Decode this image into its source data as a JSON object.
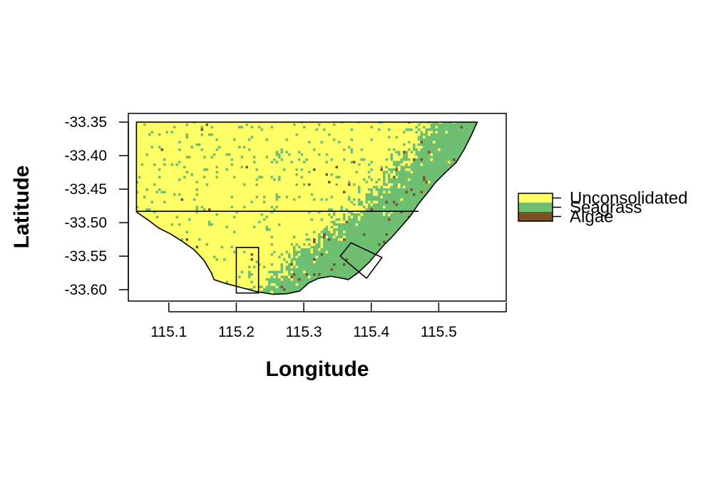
{
  "chart_data": {
    "type": "raster-map",
    "xlabel": "Longitude",
    "ylabel": "Latitude",
    "xlim": [
      115.04,
      115.6
    ],
    "ylim": [
      -33.617,
      -33.337
    ],
    "x_ticks": [
      115.1,
      115.2,
      115.3,
      115.4,
      115.5,
      115.6
    ],
    "x_tick_labels": [
      "115.1",
      "115.2",
      "115.3",
      "115.4",
      "115.5",
      ""
    ],
    "y_ticks": [
      -33.35,
      -33.4,
      -33.45,
      -33.5,
      -33.55,
      -33.6
    ],
    "y_tick_labels": [
      "-33.35",
      "-33.40",
      "-33.45",
      "-33.50",
      "-33.55",
      "-33.60"
    ],
    "classes": [
      {
        "name": "Unconsolidated",
        "color": "#FFFF66"
      },
      {
        "name": "Seagrass",
        "color": "#6FBF73"
      },
      {
        "name": "Algae",
        "color": "#7A5226"
      }
    ],
    "study_area_outline": [
      [
        115.052,
        -33.35
      ],
      [
        115.557,
        -33.35
      ],
      [
        115.548,
        -33.37
      ],
      [
        115.538,
        -33.39
      ],
      [
        115.526,
        -33.41
      ],
      [
        115.51,
        -33.425
      ],
      [
        115.495,
        -33.44
      ],
      [
        115.482,
        -33.457
      ],
      [
        115.47,
        -33.472
      ],
      [
        115.458,
        -33.49
      ],
      [
        115.445,
        -33.505
      ],
      [
        115.432,
        -33.52
      ],
      [
        115.42,
        -33.532
      ],
      [
        115.407,
        -33.547
      ],
      [
        115.396,
        -33.56
      ],
      [
        115.38,
        -33.575
      ],
      [
        115.366,
        -33.585
      ],
      [
        115.357,
        -33.583
      ],
      [
        115.34,
        -33.58
      ],
      [
        115.322,
        -33.583
      ],
      [
        115.307,
        -33.59
      ],
      [
        115.294,
        -33.602
      ],
      [
        115.275,
        -33.606
      ],
      [
        115.255,
        -33.607
      ],
      [
        115.23,
        -33.603
      ],
      [
        115.208,
        -33.597
      ],
      [
        115.185,
        -33.591
      ],
      [
        115.167,
        -33.585
      ],
      [
        115.163,
        -33.575
      ],
      [
        115.152,
        -33.556
      ],
      [
        115.137,
        -33.54
      ],
      [
        115.12,
        -33.528
      ],
      [
        115.103,
        -33.517
      ],
      [
        115.085,
        -33.508
      ],
      [
        115.072,
        -33.498
      ],
      [
        115.052,
        -33.484
      ]
    ],
    "coast_segment": [
      [
        115.052,
        -33.484
      ],
      [
        115.072,
        -33.498
      ],
      [
        115.085,
        -33.508
      ],
      [
        115.103,
        -33.517
      ],
      [
        115.12,
        -33.528
      ],
      [
        115.137,
        -33.54
      ],
      [
        115.152,
        -33.556
      ],
      [
        115.163,
        -33.575
      ],
      [
        115.167,
        -33.585
      ],
      [
        115.185,
        -33.591
      ],
      [
        115.208,
        -33.597
      ],
      [
        115.23,
        -33.603
      ],
      [
        115.255,
        -33.607
      ],
      [
        115.275,
        -33.606
      ],
      [
        115.294,
        -33.602
      ],
      [
        115.307,
        -33.59
      ],
      [
        115.322,
        -33.583
      ],
      [
        115.34,
        -33.58
      ],
      [
        115.357,
        -33.583
      ],
      [
        115.366,
        -33.585
      ]
    ],
    "divider_line": [
      [
        115.052,
        -33.483
      ],
      [
        115.47,
        -33.483
      ]
    ],
    "rect_zone": [
      [
        115.2,
        -33.537
      ],
      [
        115.233,
        -33.537
      ],
      [
        115.233,
        -33.605
      ],
      [
        115.2,
        -33.605
      ]
    ],
    "diamond_zone": [
      [
        115.37,
        -33.53
      ],
      [
        115.416,
        -33.552
      ],
      [
        115.393,
        -33.583
      ],
      [
        115.354,
        -33.55
      ]
    ],
    "seagrass_front": [
      [
        -33.35,
        115.49
      ],
      [
        -33.37,
        115.47
      ],
      [
        -33.39,
        115.455
      ],
      [
        -33.41,
        115.44
      ],
      [
        -33.43,
        115.425
      ],
      [
        -33.45,
        115.41
      ],
      [
        -33.47,
        115.39
      ],
      [
        -33.49,
        115.37
      ],
      [
        -33.51,
        115.34
      ],
      [
        -33.53,
        115.315
      ],
      [
        -33.55,
        115.29
      ],
      [
        -33.57,
        115.27
      ],
      [
        -33.59,
        115.245
      ],
      [
        -33.61,
        115.22
      ]
    ],
    "seagrass_spread": 0.028,
    "background_seagrass_rate": 0.05,
    "algae_rate_in_seagrass": 0.04,
    "algae_rate_in_sand": 0.004
  }
}
